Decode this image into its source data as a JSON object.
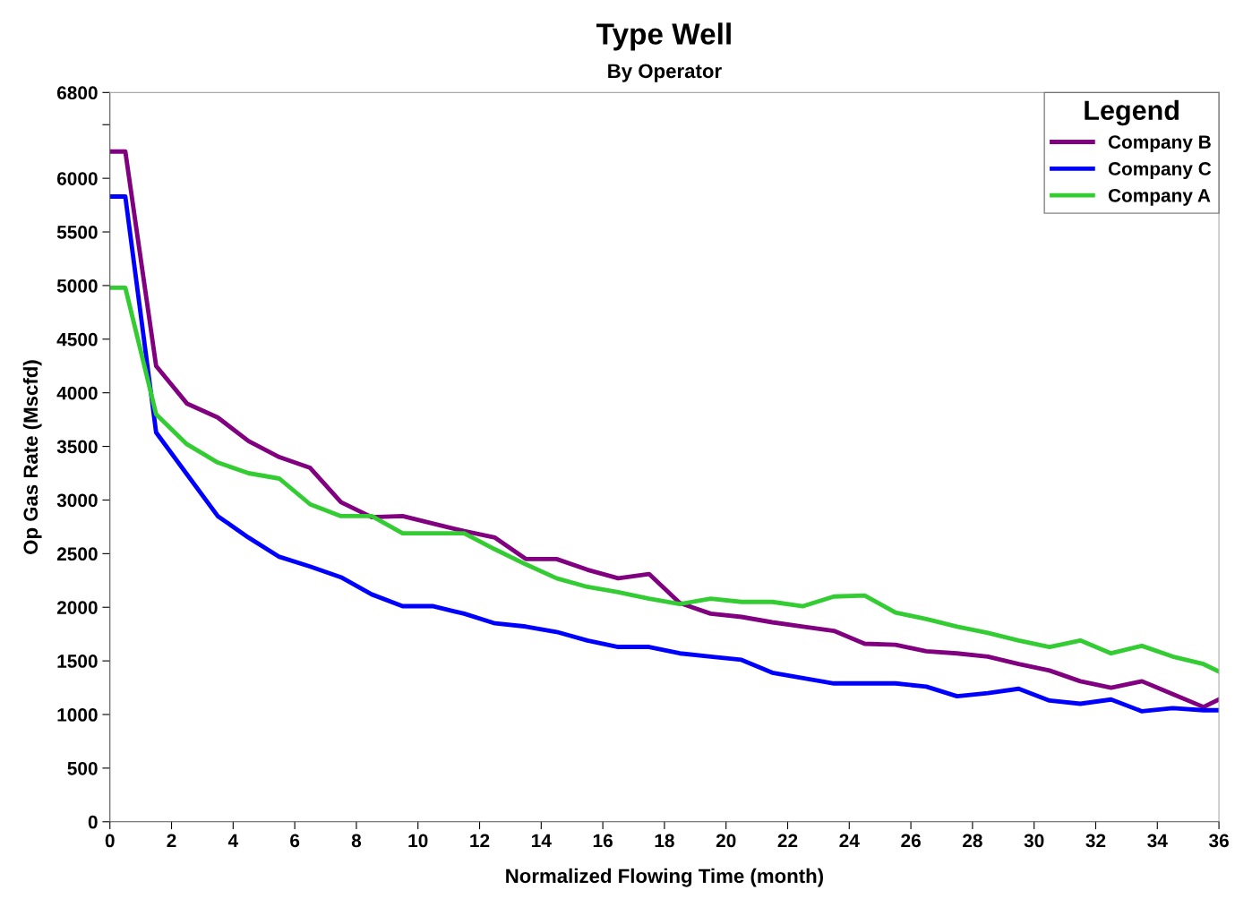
{
  "chart_data": {
    "type": "line",
    "title": "Type Well",
    "subtitle": "By Operator",
    "xlabel": "Normalized Flowing Time (month)",
    "ylabel": "Op Gas Rate (Mscfd)",
    "legend_title": "Legend",
    "x": [
      0,
      0.5,
      1.5,
      2.5,
      3.5,
      4.5,
      5.5,
      6.5,
      7.5,
      8.5,
      9.5,
      10.5,
      11.5,
      12.5,
      13.5,
      14.5,
      15.5,
      16.5,
      17.5,
      18.5,
      19.5,
      20.5,
      21.5,
      22.5,
      23.5,
      24.5,
      25.5,
      26.5,
      27.5,
      28.5,
      29.5,
      30.5,
      31.5,
      32.5,
      33.5,
      34.5,
      35.5,
      36
    ],
    "series": [
      {
        "name": "Company B",
        "color": "#800080",
        "values": [
          6250,
          6250,
          4250,
          3900,
          3770,
          3550,
          3400,
          3300,
          2980,
          2840,
          2850,
          2780,
          2710,
          2650,
          2450,
          2450,
          2350,
          2270,
          2310,
          2040,
          1940,
          1910,
          1860,
          1820,
          1780,
          1660,
          1650,
          1590,
          1570,
          1540,
          1470,
          1410,
          1310,
          1250,
          1310,
          1190,
          1070,
          1140
        ]
      },
      {
        "name": "Company C",
        "color": "#0000ff",
        "values": [
          5830,
          5830,
          3630,
          3240,
          2850,
          2650,
          2470,
          2380,
          2280,
          2120,
          2010,
          2010,
          1940,
          1850,
          1820,
          1770,
          1690,
          1630,
          1630,
          1570,
          1540,
          1510,
          1390,
          1340,
          1290,
          1290,
          1290,
          1260,
          1170,
          1200,
          1240,
          1130,
          1100,
          1140,
          1030,
          1060,
          1040,
          1040
        ]
      },
      {
        "name": "Company A",
        "color": "#33cc33",
        "values": [
          4980,
          4980,
          3800,
          3520,
          3350,
          3250,
          3200,
          2960,
          2850,
          2850,
          2690,
          2690,
          2690,
          2540,
          2400,
          2270,
          2190,
          2140,
          2080,
          2030,
          2080,
          2050,
          2050,
          2010,
          2100,
          2110,
          1950,
          1890,
          1820,
          1760,
          1690,
          1630,
          1690,
          1570,
          1640,
          1540,
          1470,
          1400
        ]
      }
    ],
    "xlim": [
      0,
      36
    ],
    "xticks": [
      0,
      2,
      4,
      6,
      8,
      10,
      12,
      14,
      16,
      18,
      20,
      22,
      24,
      26,
      28,
      30,
      32,
      34,
      36
    ],
    "ylim": [
      0,
      6800
    ],
    "yticks": [
      0,
      500,
      1000,
      1500,
      2000,
      2500,
      3000,
      3500,
      4000,
      4500,
      5000,
      5500,
      6000,
      {
        "value": 6500,
        "label": null
      },
      6800
    ],
    "grid": false,
    "legend": "top right",
    "marker": "none",
    "line_style": "solid"
  }
}
